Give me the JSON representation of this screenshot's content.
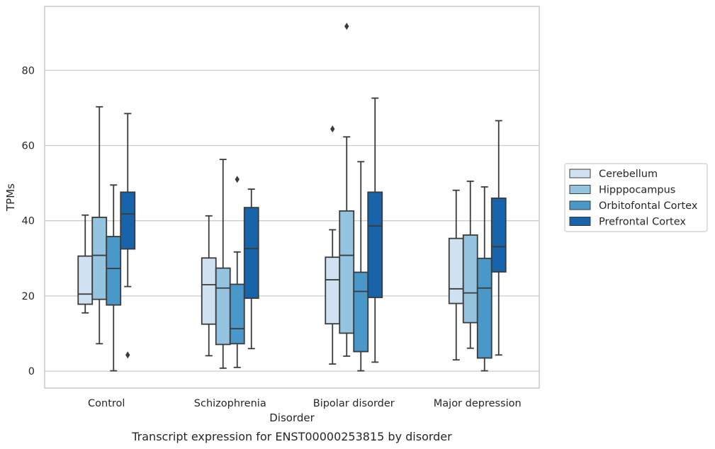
{
  "caption": "Transcript expression for ENST00000253815 by disorder",
  "chart_data": {
    "type": "box",
    "xlabel": "Disorder",
    "ylabel": "TPMs",
    "categories": [
      "Control",
      "Schizophrenia",
      "Bipolar disorder",
      "Major depression"
    ],
    "ylim": [
      -4.5,
      97
    ],
    "yticks": [
      0,
      20,
      40,
      60,
      80
    ],
    "grid": true,
    "legend_position": "right",
    "series": [
      {
        "name": "Cerebellum",
        "color": "#d0e1f2",
        "boxes": [
          {
            "whisker_low": 15.5,
            "q1": 17.8,
            "median": 20.5,
            "q3": 30.6,
            "whisker_high": 41.5,
            "outliers": []
          },
          {
            "whisker_low": 4.1,
            "q1": 12.5,
            "median": 23.0,
            "q3": 30.1,
            "whisker_high": 41.3,
            "outliers": []
          },
          {
            "whisker_low": 1.9,
            "q1": 12.6,
            "median": 24.3,
            "q3": 30.3,
            "whisker_high": 37.6,
            "outliers": [
              64.4
            ]
          },
          {
            "whisker_low": 3.0,
            "q1": 18.0,
            "median": 21.9,
            "q3": 35.3,
            "whisker_high": 48.1,
            "outliers": []
          }
        ]
      },
      {
        "name": "Hipppocampus",
        "color": "#94c4df",
        "boxes": [
          {
            "whisker_low": 7.3,
            "q1": 19.1,
            "median": 30.8,
            "q3": 40.9,
            "whisker_high": 70.3,
            "outliers": []
          },
          {
            "whisker_low": 0.8,
            "q1": 7.1,
            "median": 22.1,
            "q3": 27.4,
            "whisker_high": 56.3,
            "outliers": []
          },
          {
            "whisker_low": 4.0,
            "q1": 10.1,
            "median": 30.8,
            "q3": 42.6,
            "whisker_high": 62.3,
            "outliers": [
              91.7
            ]
          },
          {
            "whisker_low": 6.1,
            "q1": 12.9,
            "median": 20.8,
            "q3": 36.2,
            "whisker_high": 50.5,
            "outliers": []
          }
        ]
      },
      {
        "name": "Orbitofontal Cortex",
        "color": "#4a98c9",
        "boxes": [
          {
            "whisker_low": 0.1,
            "q1": 17.6,
            "median": 27.3,
            "q3": 35.8,
            "whisker_high": 49.5,
            "outliers": []
          },
          {
            "whisker_low": 1.0,
            "q1": 7.3,
            "median": 11.3,
            "q3": 23.1,
            "whisker_high": 31.7,
            "outliers": [
              51.0
            ]
          },
          {
            "whisker_low": 0.1,
            "q1": 5.2,
            "median": 21.2,
            "q3": 26.3,
            "whisker_high": 55.7,
            "outliers": []
          },
          {
            "whisker_low": 0.1,
            "q1": 3.5,
            "median": 22.1,
            "q3": 30.0,
            "whisker_high": 49.0,
            "outliers": []
          }
        ]
      },
      {
        "name": "Prefrontal Cortex",
        "color": "#1764ab",
        "boxes": [
          {
            "whisker_low": 22.5,
            "q1": 32.5,
            "median": 41.8,
            "q3": 47.6,
            "whisker_high": 68.5,
            "outliers": [
              4.3
            ]
          },
          {
            "whisker_low": 6.0,
            "q1": 19.4,
            "median": 32.6,
            "q3": 43.5,
            "whisker_high": 48.4,
            "outliers": []
          },
          {
            "whisker_low": 2.4,
            "q1": 19.6,
            "median": 38.6,
            "q3": 47.6,
            "whisker_high": 72.6,
            "outliers": []
          },
          {
            "whisker_low": 4.3,
            "q1": 26.4,
            "median": 33.1,
            "q3": 46.0,
            "whisker_high": 66.6,
            "outliers": []
          }
        ]
      }
    ]
  }
}
